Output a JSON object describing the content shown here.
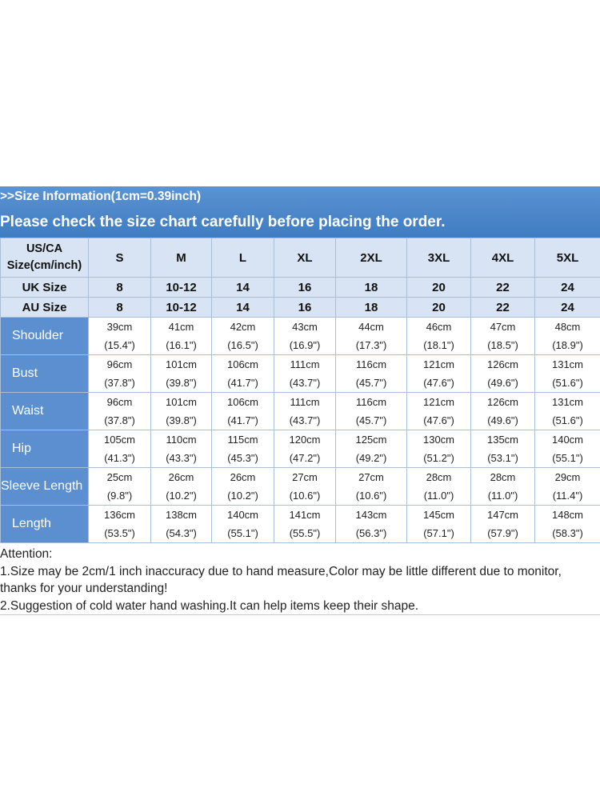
{
  "header": {
    "line1": ">>Size  Information(1cm=0.39inch)",
    "line2": "Please check the size chart carefully before placing the order."
  },
  "table": {
    "corner_label_1": "US/CA",
    "corner_label_2": "Size(cm/inch)",
    "sizes": [
      "S",
      "M",
      "L",
      "XL",
      "2XL",
      "3XL",
      "4XL",
      "5XL"
    ],
    "uk_label": "UK Size",
    "uk_sizes": [
      "8",
      "10-12",
      "14",
      "16",
      "18",
      "20",
      "22",
      "24"
    ],
    "au_label": "AU Size",
    "au_sizes": [
      "8",
      "10-12",
      "14",
      "16",
      "18",
      "20",
      "22",
      "24"
    ],
    "rows": [
      {
        "label": "Shoulder",
        "cm": [
          "39cm",
          "41cm",
          "42cm",
          "43cm",
          "44cm",
          "46cm",
          "47cm",
          "48cm"
        ],
        "inch": [
          "(15.4\")",
          "(16.1\")",
          "(16.5\")",
          "(16.9\")",
          "(17.3\")",
          "(18.1\")",
          "(18.5\")",
          "(18.9\")"
        ]
      },
      {
        "label": "Bust",
        "cm": [
          "96cm",
          "101cm",
          "106cm",
          "111cm",
          "116cm",
          "121cm",
          "126cm",
          "131cm"
        ],
        "inch": [
          "(37.8\")",
          "(39.8\")",
          "(41.7\")",
          "(43.7\")",
          "(45.7\")",
          "(47.6\")",
          "(49.6\")",
          "(51.6\")"
        ]
      },
      {
        "label": "Waist",
        "cm": [
          "96cm",
          "101cm",
          "106cm",
          "111cm",
          "116cm",
          "121cm",
          "126cm",
          "131cm"
        ],
        "inch": [
          "(37.8\")",
          "(39.8\")",
          "(41.7\")",
          "(43.7\")",
          "(45.7\")",
          "(47.6\")",
          "(49.6\")",
          "(51.6\")"
        ]
      },
      {
        "label": "Hip",
        "cm": [
          "105cm",
          "110cm",
          "115cm",
          "120cm",
          "125cm",
          "130cm",
          "135cm",
          "140cm"
        ],
        "inch": [
          "(41.3\")",
          "(43.3\")",
          "(45.3\")",
          "(47.2\")",
          "(49.2\")",
          "(51.2\")",
          "(53.1\")",
          "(55.1\")"
        ]
      },
      {
        "label": "Sleeve Length",
        "cm": [
          "25cm",
          "26cm",
          "26cm",
          "27cm",
          "27cm",
          "28cm",
          "28cm",
          "29cm"
        ],
        "inch": [
          "(9.8\")",
          "(10.2\")",
          "(10.2\")",
          "(10.6\")",
          "(10.6\")",
          "(11.0\")",
          "(11.0\")",
          "(11.4\")"
        ]
      },
      {
        "label": "Length",
        "cm": [
          "136cm",
          "138cm",
          "140cm",
          "141cm",
          "143cm",
          "145cm",
          "147cm",
          "148cm"
        ],
        "inch": [
          "(53.5\")",
          "(54.3\")",
          "(55.1\")",
          "(55.5\")",
          "(56.3\")",
          "(57.1\")",
          "(57.9\")",
          "(58.3\")"
        ]
      }
    ]
  },
  "notes": {
    "title": "Attention:",
    "line1": "1.Size may be 2cm/1 inch inaccuracy due to hand measure,Color may be little different due to monitor,",
    "line2": "thanks for your understanding!",
    "line3": "2.Suggestion of cold water hand washing.It can help items keep their shape."
  },
  "colors": {
    "header_bg": "#4a86c8",
    "size_header_bg": "#d8e4f3",
    "label_col_bg": "#5b8fd0",
    "grid_line": "#a9bfd8"
  }
}
